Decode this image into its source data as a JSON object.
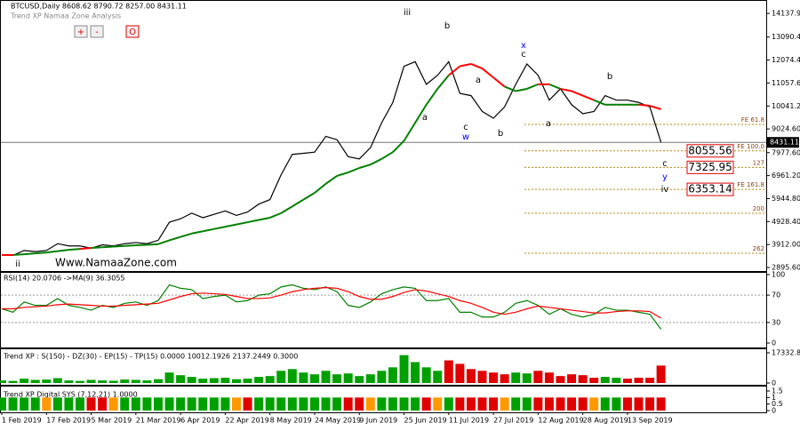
{
  "header": {
    "symbol_line": "BTCUSD,Daily  8608.62 8790.72 8257.00 8431.11",
    "indicator_name": "Trend XP Namaa Zone Analysis",
    "buttons": [
      "+",
      "-",
      "O"
    ]
  },
  "watermark": "Www.NamaaZone.com",
  "chart_data": [
    {
      "type": "line",
      "categories": [
        "1 Feb 2019",
        null,
        null,
        null,
        "17 Feb 2019",
        null,
        null,
        null,
        "5 Mar 2019",
        null,
        null,
        null,
        "21 Mar 2019",
        null,
        null,
        null,
        "6 Apr 2019",
        null,
        null,
        null,
        "22 Apr 2019",
        null,
        null,
        null,
        "8 May 2019",
        null,
        null,
        null,
        "24 May 2019",
        null,
        null,
        null,
        "9 Jun 2019",
        null,
        null,
        null,
        "25 Jun 2019",
        null,
        null,
        null,
        "11 Jul 2019",
        null,
        null,
        null,
        "27 Jul 2019",
        null,
        null,
        null,
        "12 Aug 2019",
        null,
        null,
        null,
        "28 Aug 2019",
        null,
        null,
        null,
        "13 Sep 2019",
        null,
        null,
        null
      ],
      "series": [
        {
          "color": "#000000",
          "values": [
            3450,
            3430,
            3650,
            3600,
            3650,
            3950,
            3850,
            3850,
            3750,
            3900,
            3850,
            3950,
            4000,
            3950,
            4100,
            4900,
            5050,
            5300,
            5100,
            5250,
            5400,
            5200,
            5350,
            5700,
            5900,
            7000,
            7900,
            7950,
            8000,
            8700,
            8550,
            7800,
            7700,
            8200,
            9300,
            10200,
            11800,
            12000,
            11000,
            11400,
            12000,
            10600,
            10500,
            9800,
            9500,
            10000,
            11000,
            11900,
            11400,
            10300,
            10800,
            10100,
            9700,
            9800,
            10500,
            10300,
            10300,
            10200,
            10000,
            8431.11
          ]
        },
        {
          "color_rising": "#008000",
          "color_falling": "#ff0000",
          "values": [
            3450,
            3450,
            3480,
            3520,
            3560,
            3620,
            3680,
            3720,
            3760,
            3790,
            3820,
            3850,
            3880,
            3900,
            3930,
            4100,
            4250,
            4400,
            4500,
            4600,
            4700,
            4800,
            4900,
            5000,
            5100,
            5300,
            5600,
            5900,
            6200,
            6600,
            6950,
            7100,
            7300,
            7450,
            7700,
            8000,
            8500,
            9300,
            10100,
            10800,
            11400,
            11800,
            11900,
            11700,
            11300,
            10900,
            10700,
            10800,
            11000,
            11000,
            10800,
            10700,
            10500,
            10300,
            10100,
            10100,
            10100,
            10100,
            10050,
            9900
          ]
        }
      ],
      "ylim": [
        2740,
        14730
      ],
      "yticks": [
        {
          "value": 14137.9,
          "label": "14137.90"
        },
        {
          "value": 13090.4,
          "label": "13090.40"
        },
        {
          "value": 12074.4,
          "label": "12074.40"
        },
        {
          "value": 11057.6,
          "label": "11057.60"
        },
        10041.25,
        {
          "value": 9024.6,
          "label": "9024.60"
        },
        {
          "value": 7977.6,
          "label": "7977.60"
        },
        {
          "value": 6961.2,
          "label": "6961.20"
        },
        {
          "value": 5944.8,
          "label": "5944.80"
        },
        {
          "value": 4928.4,
          "label": "4928.40"
        },
        {
          "value": 3912,
          "label": "3912.00"
        },
        {
          "value": 2895.6,
          "label": "2895.60"
        }
      ],
      "current_price": 8431.11,
      "levels": [
        {
          "label": "FE 61.8",
          "value": 9227
        },
        {
          "label": "FE 100.0",
          "value": 8055.56,
          "boxed": true
        },
        {
          "label": "127",
          "value": 7325.95,
          "boxed": true
        },
        {
          "label": "FE 161.8",
          "value": 6353.14,
          "boxed": true
        },
        {
          "label": "200",
          "value": 5296
        },
        {
          "label": "262",
          "value": 3527
        }
      ],
      "annotations": [
        {
          "text": "ii",
          "color": "#000000"
        },
        {
          "text": "iii",
          "color": "#000000"
        },
        {
          "text": "b",
          "color": "#000000"
        },
        {
          "text": "a",
          "color": "#000000"
        },
        {
          "text": "c",
          "color": "#000000"
        },
        {
          "text": "w",
          "color": "#0000ff"
        },
        {
          "text": "a",
          "color": "#000000"
        },
        {
          "text": "b",
          "color": "#000000"
        },
        {
          "text": "x",
          "color": "#0000ff"
        },
        {
          "text": "c",
          "color": "#000000"
        },
        {
          "text": "a",
          "color": "#000000"
        },
        {
          "text": "b",
          "color": "#000000"
        },
        {
          "text": "c",
          "color": "#000000"
        },
        {
          "text": "y",
          "color": "#0000ff"
        },
        {
          "text": "iv",
          "color": "#000000"
        }
      ]
    },
    {
      "type": "line",
      "title": "RSI(14) 20.0706 ->MA(9) 36.3055",
      "series": [
        {
          "color": "#008000",
          "values": [
            50,
            45,
            60,
            55,
            55,
            65,
            55,
            52,
            48,
            55,
            52,
            58,
            60,
            55,
            62,
            85,
            80,
            78,
            65,
            68,
            70,
            60,
            62,
            70,
            72,
            82,
            85,
            80,
            78,
            82,
            75,
            55,
            52,
            60,
            72,
            78,
            82,
            80,
            62,
            62,
            65,
            45,
            45,
            38,
            38,
            45,
            58,
            62,
            55,
            42,
            50,
            42,
            38,
            42,
            52,
            48,
            48,
            45,
            42,
            20.0706
          ]
        },
        {
          "color": "#ff0000",
          "values": [
            50,
            50,
            52,
            53,
            54,
            56,
            57,
            56,
            55,
            54,
            54,
            55,
            56,
            57,
            58,
            63,
            68,
            72,
            73,
            72,
            71,
            68,
            65,
            65,
            66,
            70,
            75,
            78,
            80,
            81,
            80,
            75,
            68,
            64,
            64,
            68,
            74,
            78,
            76,
            72,
            68,
            62,
            58,
            52,
            45,
            42,
            45,
            50,
            54,
            52,
            50,
            48,
            46,
            44,
            44,
            46,
            47,
            47,
            46,
            36.3055
          ]
        }
      ],
      "ylim": [
        0,
        100
      ],
      "yticks": [
        100,
        70,
        30,
        0
      ],
      "levels": [
        70,
        30
      ]
    },
    {
      "type": "bar",
      "title": "Trend XP : S(150) - DZ(30) - EP(15) - TP(15) 0.0000 10012.1926 2137.2449 0.3000",
      "values": [
        1500,
        1200,
        2500,
        1800,
        2000,
        2800,
        1500,
        1200,
        1800,
        1500,
        1300,
        2000,
        1800,
        1500,
        2200,
        6000,
        4500,
        3500,
        2500,
        2800,
        3000,
        2200,
        2500,
        3500,
        4000,
        7000,
        8000,
        6000,
        5000,
        7000,
        5000,
        5500,
        4000,
        5000,
        7000,
        9000,
        16000,
        12000,
        9000,
        7000,
        13000,
        11000,
        8000,
        7000,
        6000,
        5000,
        6000,
        5500,
        7000,
        6000,
        4000,
        5000,
        4500,
        3000,
        3500,
        3000,
        2500,
        3000,
        3000,
        10000
      ],
      "colors": [
        "#00a000",
        "#00a000",
        "#00a000",
        "#00a000",
        "#00a000",
        "#00a000",
        "#00a000",
        "#00a000",
        "#00a000",
        "#00a000",
        "#00a000",
        "#00a000",
        "#00a000",
        "#00a000",
        "#00a000",
        "#00a000",
        "#00a000",
        "#00a000",
        "#00a000",
        "#00a000",
        "#00a000",
        "#00a000",
        "#00a000",
        "#00a000",
        "#00a000",
        "#00a000",
        "#00a000",
        "#00a000",
        "#00a000",
        "#00a000",
        "#00a000",
        "#00a000",
        "#00a000",
        "#00a000",
        "#00a000",
        "#00a000",
        "#00a000",
        "#00a000",
        "#00a000",
        "#00a000",
        "#e00000",
        "#e00000",
        "#e00000",
        "#e00000",
        "#e00000",
        "#e00000",
        "#00a000",
        "#00a000",
        "#e00000",
        "#e00000",
        "#e00000",
        "#e00000",
        "#e00000",
        "#e00000",
        "#00a000",
        "#00a000",
        "#e00000",
        "#e00000",
        "#e00000",
        "#e00000"
      ],
      "ylim": [
        0,
        17332.854
      ],
      "yticks": [
        17332.854,
        0
      ]
    },
    {
      "type": "bar",
      "title": "Trend XP Digital SYS (7,12,21) 1.0000",
      "values": [
        1,
        1,
        1,
        1,
        1,
        1,
        1,
        1,
        1,
        1,
        1,
        1,
        1,
        1,
        1,
        1,
        1,
        1,
        1,
        1,
        1,
        1,
        1,
        1,
        1,
        1,
        1,
        1,
        1,
        1,
        1,
        1,
        1,
        1,
        1,
        1,
        1,
        1,
        1,
        1,
        1,
        1,
        1,
        1,
        1,
        1,
        1,
        1,
        1,
        1,
        1,
        1,
        1,
        1,
        1,
        1,
        1,
        1,
        1,
        1
      ],
      "colors": [
        "#00a000",
        "#00a000",
        "#00a000",
        "#00a000",
        "#ff9900",
        "#00a000",
        "#00a000",
        "#00a000",
        "#e00000",
        "#e00000",
        "#ff9900",
        "#00a000",
        "#00a000",
        "#00a000",
        "#00a000",
        "#00a000",
        "#00a000",
        "#00a000",
        "#00a000",
        "#00a000",
        "#00a000",
        "#ff9900",
        "#e00000",
        "#00a000",
        "#00a000",
        "#00a000",
        "#00a000",
        "#00a000",
        "#00a000",
        "#00a000",
        "#00a000",
        "#e00000",
        "#e00000",
        "#ff9900",
        "#00a000",
        "#00a000",
        "#00a000",
        "#00a000",
        "#e00000",
        "#ff9900",
        "#00a000",
        "#e00000",
        "#e00000",
        "#e00000",
        "#e00000",
        "#ff9900",
        "#00a000",
        "#00a000",
        "#e00000",
        "#e00000",
        "#e00000",
        "#e00000",
        "#e00000",
        "#ff9900",
        "#00a000",
        "#00a000",
        "#e00000",
        "#e00000",
        "#e00000",
        "#e00000"
      ],
      "ylim": [
        0,
        1.5
      ],
      "yticks": [
        1.5,
        1,
        0.5,
        0
      ]
    }
  ]
}
